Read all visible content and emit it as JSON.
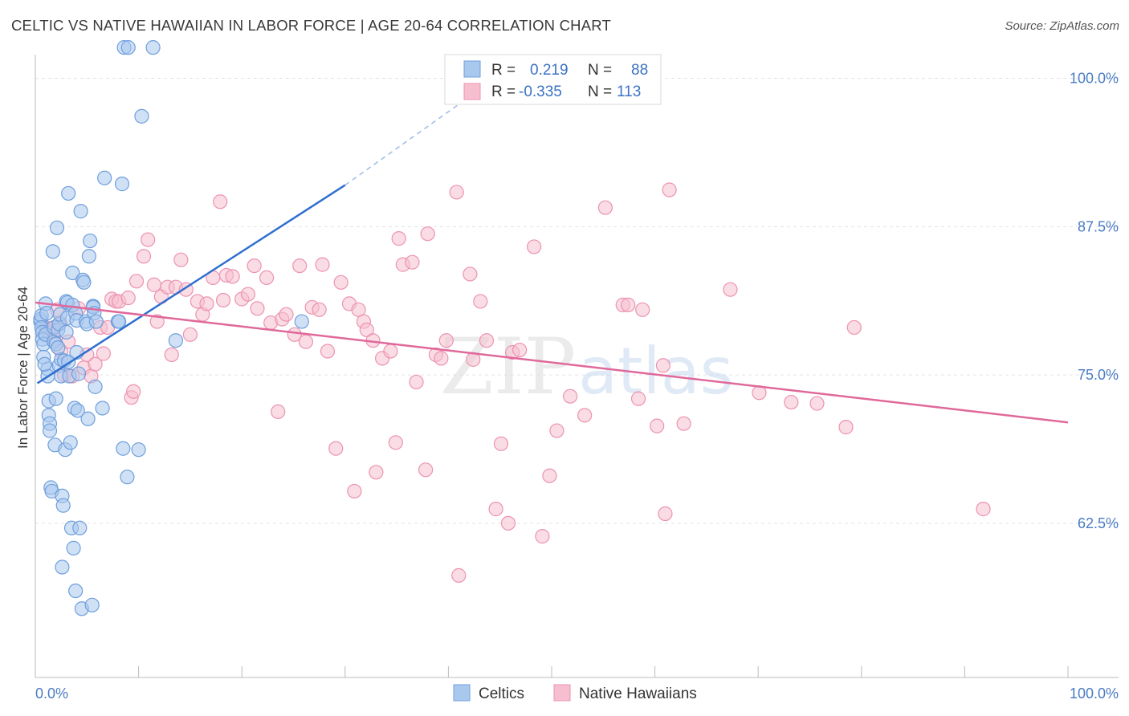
{
  "title": "CELTIC VS NATIVE HAWAIIAN IN LABOR FORCE | AGE 20-64 CORRELATION CHART",
  "source": "Source: ZipAtlas.com",
  "watermark": {
    "zip": "ZIP",
    "atlas": "atlas"
  },
  "colors": {
    "blue_fill": "#a9c8ee",
    "blue_stroke": "#6f9fdc",
    "blue_line": "#2f6fcf",
    "pink_fill": "#f6bfd0",
    "pink_stroke": "#ec93b0",
    "pink_line": "#e0689a",
    "tick_text": "#4a7bc4",
    "grid": "#e3e3e3"
  },
  "legend": {
    "rows": [
      {
        "r_label": "R =",
        "r_value": "0.219",
        "n_label": "N =",
        "n_value": "88",
        "color": "blue"
      },
      {
        "r_label": "R =",
        "r_value": "-0.335",
        "n_label": "N =",
        "n_value": "113",
        "color": "pink"
      }
    ]
  },
  "chart_data": {
    "type": "scatter",
    "title": "CELTIC VS NATIVE HAWAIIAN IN LABOR FORCE | AGE 20-64 CORRELATION CHART",
    "xlabel": "",
    "ylabel": "In Labor Force | Age 20-64",
    "xlim": [
      0,
      100
    ],
    "ylim": [
      49.5,
      102
    ],
    "x_tick_labels": [
      {
        "value": 0,
        "label": "0.0%"
      },
      {
        "value": 100,
        "label": "100.0%"
      }
    ],
    "y_ticks": [
      {
        "value": 62.5,
        "label": "62.5%"
      },
      {
        "value": 75.0,
        "label": "75.0%"
      },
      {
        "value": 87.5,
        "label": "87.5%"
      },
      {
        "value": 100.0,
        "label": "100.0%"
      }
    ],
    "series": [
      {
        "name": "Celtics",
        "color": "blue",
        "r": 0.219,
        "n": 88,
        "trend": {
          "x0": 0.2,
          "y0": 74.3,
          "x1": 30.0,
          "y1": 91.0,
          "dash_x1": 41.0,
          "dash_y1": 97.8
        },
        "points": [
          [
            0.5,
            79.5
          ],
          [
            0.5,
            79.7
          ],
          [
            0.6,
            80.0
          ],
          [
            0.6,
            79.0
          ],
          [
            0.7,
            78.6
          ],
          [
            0.7,
            78.0
          ],
          [
            0.8,
            77.6
          ],
          [
            0.8,
            76.5
          ],
          [
            1.0,
            81.0
          ],
          [
            1.0,
            78.4
          ],
          [
            1.2,
            75.5
          ],
          [
            1.2,
            74.9
          ],
          [
            1.3,
            72.8
          ],
          [
            1.3,
            71.6
          ],
          [
            1.4,
            70.9
          ],
          [
            1.4,
            70.3
          ],
          [
            1.5,
            65.5
          ],
          [
            1.6,
            65.2
          ],
          [
            1.7,
            85.4
          ],
          [
            1.8,
            79.0
          ],
          [
            1.8,
            77.8
          ],
          [
            1.9,
            69.1
          ],
          [
            2.0,
            73.0
          ],
          [
            2.0,
            77.6
          ],
          [
            2.1,
            87.4
          ],
          [
            2.2,
            78.8
          ],
          [
            2.3,
            79.3
          ],
          [
            2.3,
            75.8
          ],
          [
            2.4,
            80.1
          ],
          [
            2.5,
            76.3
          ],
          [
            2.5,
            74.9
          ],
          [
            2.6,
            58.8
          ],
          [
            2.6,
            64.8
          ],
          [
            2.7,
            64.0
          ],
          [
            2.8,
            76.2
          ],
          [
            2.9,
            68.7
          ],
          [
            3.0,
            81.2
          ],
          [
            3.1,
            81.1
          ],
          [
            3.1,
            79.8
          ],
          [
            3.2,
            90.3
          ],
          [
            3.2,
            76.1
          ],
          [
            3.3,
            74.9
          ],
          [
            3.4,
            69.3
          ],
          [
            3.5,
            62.1
          ],
          [
            3.6,
            80.9
          ],
          [
            3.6,
            83.6
          ],
          [
            3.7,
            60.4
          ],
          [
            3.8,
            72.2
          ],
          [
            3.9,
            80.2
          ],
          [
            3.9,
            56.8
          ],
          [
            4.0,
            79.6
          ],
          [
            4.1,
            72.0
          ],
          [
            4.2,
            75.1
          ],
          [
            4.3,
            62.1
          ],
          [
            4.4,
            88.8
          ],
          [
            4.5,
            55.3
          ],
          [
            4.6,
            83.0
          ],
          [
            4.7,
            82.8
          ],
          [
            4.9,
            79.5
          ],
          [
            5.0,
            79.3
          ],
          [
            5.1,
            71.3
          ],
          [
            5.2,
            85.0
          ],
          [
            5.3,
            86.3
          ],
          [
            5.5,
            55.6
          ],
          [
            5.6,
            80.8
          ],
          [
            5.6,
            80.7
          ],
          [
            5.7,
            80.2
          ],
          [
            5.8,
            74.0
          ],
          [
            5.9,
            79.5
          ],
          [
            6.5,
            72.2
          ],
          [
            6.7,
            91.6
          ],
          [
            8.0,
            79.5
          ],
          [
            8.1,
            79.5
          ],
          [
            8.4,
            91.1
          ],
          [
            8.5,
            68.8
          ],
          [
            8.6,
            102.6
          ],
          [
            8.9,
            66.4
          ],
          [
            9.0,
            102.6
          ],
          [
            10.0,
            68.7
          ],
          [
            10.3,
            96.8
          ],
          [
            11.4,
            102.6
          ],
          [
            13.6,
            77.9
          ],
          [
            25.8,
            79.5
          ],
          [
            1.1,
            80.2
          ],
          [
            2.2,
            77.3
          ],
          [
            0.9,
            75.9
          ],
          [
            3.0,
            78.6
          ],
          [
            4.0,
            76.9
          ]
        ]
      },
      {
        "name": "Native Hawaiians",
        "color": "pink",
        "r": -0.335,
        "n": 113,
        "trend": {
          "x0": 0.0,
          "y0": 81.1,
          "x1": 100.0,
          "y1": 71.0
        },
        "points": [
          [
            1.0,
            79.0
          ],
          [
            1.3,
            78.6
          ],
          [
            1.6,
            78.9
          ],
          [
            1.8,
            78.0
          ],
          [
            2.1,
            80.5
          ],
          [
            2.4,
            79.4
          ],
          [
            2.5,
            77.0
          ],
          [
            2.8,
            75.0
          ],
          [
            3.2,
            77.8
          ],
          [
            3.6,
            74.9
          ],
          [
            4.2,
            80.6
          ],
          [
            4.7,
            75.6
          ],
          [
            5.0,
            76.7
          ],
          [
            5.4,
            74.9
          ],
          [
            5.8,
            75.9
          ],
          [
            6.3,
            79.0
          ],
          [
            6.6,
            76.8
          ],
          [
            7.0,
            79.0
          ],
          [
            7.4,
            81.4
          ],
          [
            7.8,
            81.2
          ],
          [
            8.1,
            81.2
          ],
          [
            9.0,
            81.5
          ],
          [
            9.3,
            73.1
          ],
          [
            9.5,
            73.6
          ],
          [
            9.8,
            82.9
          ],
          [
            10.5,
            85.0
          ],
          [
            10.9,
            86.4
          ],
          [
            11.5,
            82.6
          ],
          [
            11.8,
            79.5
          ],
          [
            12.2,
            81.6
          ],
          [
            12.8,
            82.4
          ],
          [
            13.2,
            76.7
          ],
          [
            13.6,
            82.4
          ],
          [
            14.1,
            84.7
          ],
          [
            14.6,
            82.2
          ],
          [
            15.0,
            78.4
          ],
          [
            15.7,
            81.2
          ],
          [
            16.2,
            80.1
          ],
          [
            16.6,
            81.0
          ],
          [
            17.2,
            83.2
          ],
          [
            17.9,
            89.6
          ],
          [
            18.2,
            81.3
          ],
          [
            18.5,
            83.4
          ],
          [
            19.1,
            83.3
          ],
          [
            20.0,
            81.4
          ],
          [
            20.6,
            81.8
          ],
          [
            21.2,
            84.2
          ],
          [
            21.5,
            80.6
          ],
          [
            22.4,
            83.2
          ],
          [
            22.8,
            79.4
          ],
          [
            23.5,
            71.9
          ],
          [
            23.9,
            79.7
          ],
          [
            24.3,
            80.1
          ],
          [
            25.1,
            78.4
          ],
          [
            25.6,
            84.2
          ],
          [
            26.2,
            77.8
          ],
          [
            26.8,
            80.7
          ],
          [
            27.5,
            80.5
          ],
          [
            27.8,
            84.3
          ],
          [
            28.3,
            77.0
          ],
          [
            29.1,
            68.8
          ],
          [
            29.6,
            82.8
          ],
          [
            30.4,
            81.0
          ],
          [
            30.9,
            65.2
          ],
          [
            31.3,
            80.5
          ],
          [
            31.8,
            79.5
          ],
          [
            32.1,
            78.8
          ],
          [
            32.7,
            77.9
          ],
          [
            33.0,
            66.8
          ],
          [
            33.6,
            76.4
          ],
          [
            34.4,
            77.0
          ],
          [
            34.9,
            69.3
          ],
          [
            35.2,
            86.5
          ],
          [
            35.6,
            84.3
          ],
          [
            36.5,
            84.5
          ],
          [
            36.9,
            74.4
          ],
          [
            37.8,
            67.0
          ],
          [
            38.0,
            86.9
          ],
          [
            38.8,
            76.7
          ],
          [
            39.3,
            76.4
          ],
          [
            39.8,
            77.9
          ],
          [
            40.8,
            90.4
          ],
          [
            41.0,
            58.1
          ],
          [
            42.1,
            83.5
          ],
          [
            42.4,
            76.3
          ],
          [
            43.1,
            81.2
          ],
          [
            43.7,
            77.9
          ],
          [
            44.6,
            63.7
          ],
          [
            45.1,
            69.2
          ],
          [
            45.8,
            62.5
          ],
          [
            46.2,
            76.9
          ],
          [
            46.9,
            77.1
          ],
          [
            48.3,
            85.8
          ],
          [
            49.1,
            61.4
          ],
          [
            49.8,
            66.5
          ],
          [
            50.5,
            70.3
          ],
          [
            51.8,
            73.2
          ],
          [
            53.2,
            71.6
          ],
          [
            55.2,
            89.1
          ],
          [
            56.9,
            80.9
          ],
          [
            57.4,
            80.9
          ],
          [
            58.4,
            73.0
          ],
          [
            58.8,
            80.5
          ],
          [
            60.2,
            70.7
          ],
          [
            60.8,
            75.8
          ],
          [
            61.0,
            63.3
          ],
          [
            61.4,
            90.6
          ],
          [
            62.8,
            70.9
          ],
          [
            67.3,
            82.2
          ],
          [
            70.1,
            73.5
          ],
          [
            73.2,
            72.7
          ],
          [
            75.7,
            72.6
          ],
          [
            78.5,
            70.6
          ],
          [
            79.3,
            79.0
          ],
          [
            91.8,
            63.7
          ]
        ]
      }
    ],
    "legend_entries": [
      "Celtics",
      "Native Hawaiians"
    ]
  }
}
